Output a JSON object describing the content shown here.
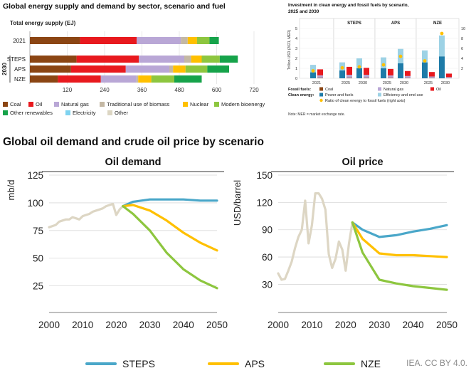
{
  "panel1": {
    "title": "Global energy supply and demand by sector, scenario and fuel",
    "subtitle": "Total energy supply (EJ)",
    "year_group_label": "2030",
    "rows": [
      "2021",
      "STEPS",
      "APS",
      "NZE"
    ],
    "xticks": [
      120,
      240,
      360,
      480,
      600,
      720
    ],
    "xlim": [
      0,
      720
    ],
    "fuels": [
      "Coal",
      "Oil",
      "Natural gas",
      "Traditional use of biomass",
      "Nuclear",
      "Modern bioenergy",
      "Other renewables",
      "Electricity",
      "Other"
    ],
    "colors": {
      "Coal": "#8B4513",
      "Oil": "#E8191E",
      "Natural gas": "#B9A7D6",
      "Traditional use of biomass": "#C4B8A4",
      "Nuclear": "#FFC000",
      "Modern bioenergy": "#8DC63F",
      "Other renewables": "#16A34A",
      "Electricity": "#7FD3F0",
      "Other": "#DCD6C3"
    },
    "values": [
      {
        "row": "2021",
        "Coal": 161,
        "Oil": 182,
        "Natural gas": 142,
        "Traditional use of biomass": 22,
        "Nuclear": 30,
        "Modern bioenergy": 40,
        "Other renewables": 30
      },
      {
        "row": "STEPS",
        "Coal": 150,
        "Oil": 200,
        "Natural gas": 146,
        "Traditional use of biomass": 22,
        "Nuclear": 34,
        "Modern bioenergy": 58,
        "Other renewables": 58
      },
      {
        "row": "APS",
        "Coal": 132,
        "Oil": 176,
        "Natural gas": 140,
        "Traditional use of biomass": 12,
        "Nuclear": 40,
        "Modern bioenergy": 70,
        "Other renewables": 70
      },
      {
        "row": "NZE",
        "Coal": 90,
        "Oil": 138,
        "Natural gas": 114,
        "Traditional use of biomass": 6,
        "Nuclear": 42,
        "Modern bioenergy": 74,
        "Other renewables": 88
      }
    ]
  },
  "panel2": {
    "title": "Investment in clean energy and fossil fuels by scenario, 2025 and 2030",
    "ylabel": "Trillion USD (2021, MER)",
    "yticks_left": [
      "0",
      "1",
      "2",
      "3",
      "4",
      "5"
    ],
    "yticks_right": [
      "2",
      "4",
      "6",
      "8",
      "10"
    ],
    "groups": [
      {
        "name": "",
        "cols": [
          "2021"
        ]
      },
      {
        "name": "STEPS",
        "cols": [
          "2025",
          "2030"
        ]
      },
      {
        "name": "APS",
        "cols": [
          "2025",
          "2030"
        ]
      },
      {
        "name": "NZE",
        "cols": [
          "2025",
          "2030"
        ]
      }
    ],
    "series": {
      "power_fuels": [
        0.6,
        0.8,
        1.0,
        1.0,
        1.5,
        1.6,
        2.2
      ],
      "efficiency": [
        0.75,
        0.8,
        1.0,
        1.1,
        1.45,
        1.2,
        2.1
      ],
      "fossil_coal": [
        0.05,
        0.05,
        0.05,
        0.04,
        0.03,
        0.03,
        0.02
      ],
      "fossil_gas": [
        0.25,
        0.3,
        0.3,
        0.25,
        0.2,
        0.15,
        0.1
      ],
      "fossil_oil": [
        0.6,
        0.8,
        0.7,
        0.65,
        0.5,
        0.45,
        0.35
      ],
      "ratio": [
        1.5,
        2.1,
        2.3,
        2.7,
        4.4,
        3.5,
        9.0
      ]
    },
    "legend": {
      "fossil_label": "Fossil fuels:",
      "clean_label": "Clean energy:",
      "coal": "Coal",
      "natural_gas": "Natural gas",
      "oil": "Oil",
      "power_fuels": "Power and fuels",
      "efficiency": "Efficiency and end-use",
      "ratio": "Ratio of clean energy to fossil fuels (right axis)"
    },
    "colors": {
      "power_fuels": "#1E7BA8",
      "efficiency": "#9DD2E5",
      "coal": "#8B4513",
      "natural_gas": "#B9A7D6",
      "oil": "#E8191E",
      "ratio": "#FFC000"
    },
    "note": "Note: MER = market exchange rate."
  },
  "panel3": {
    "title": "Global oil demand and crude oil price by scenario"
  },
  "chart_data": [
    {
      "type": "line",
      "title": "Oil demand",
      "ylabel": "mb/d",
      "xlim": [
        2000,
        2050
      ],
      "ylim": [
        10,
        125
      ],
      "xticks": [
        2000,
        2010,
        2020,
        2030,
        2040,
        2050
      ],
      "yticks": [
        25,
        50,
        75,
        100,
        125
      ],
      "grid": "horizontal",
      "series": [
        {
          "name": "",
          "color": "#DDD6C4",
          "x": [
            2000,
            2001,
            2002,
            2003,
            2004,
            2005,
            2006,
            2007,
            2008,
            2009,
            2010,
            2011,
            2012,
            2013,
            2014,
            2015,
            2016,
            2017,
            2018,
            2019,
            2020,
            2021,
            2022
          ],
          "y": [
            78,
            79,
            80,
            83,
            84,
            85,
            85,
            87,
            86,
            85,
            88,
            89,
            90,
            92,
            93,
            94,
            95,
            97,
            98,
            99,
            89,
            94,
            97
          ]
        },
        {
          "name": "STEPS",
          "color": "#4AA7C9",
          "x": [
            2022,
            2025,
            2030,
            2035,
            2040,
            2045,
            2050
          ],
          "y": [
            97,
            101,
            103,
            103,
            103,
            102,
            102
          ]
        },
        {
          "name": "APS",
          "color": "#FFC000",
          "x": [
            2022,
            2025,
            2030,
            2035,
            2040,
            2045,
            2050
          ],
          "y": [
            97,
            98,
            93,
            84,
            73,
            64,
            57
          ]
        },
        {
          "name": "NZE",
          "color": "#8DC63F",
          "x": [
            2022,
            2025,
            2030,
            2035,
            2040,
            2045,
            2050
          ],
          "y": [
            97,
            90,
            75,
            55,
            40,
            30,
            23
          ]
        }
      ]
    },
    {
      "type": "line",
      "title": "Oil price",
      "ylabel": "USD/barrel",
      "xlim": [
        2000,
        2050
      ],
      "ylim": [
        10,
        150
      ],
      "xticks": [
        2000,
        2010,
        2020,
        2030,
        2040,
        2050
      ],
      "yticks": [
        30,
        60,
        90,
        120,
        150
      ],
      "grid": "horizontal",
      "series": [
        {
          "name": "",
          "color": "#DDD6C4",
          "x": [
            2000,
            2001,
            2002,
            2003,
            2004,
            2005,
            2006,
            2007,
            2008,
            2009,
            2010,
            2011,
            2012,
            2013,
            2014,
            2015,
            2016,
            2017,
            2018,
            2019,
            2020,
            2021,
            2022
          ],
          "y": [
            42,
            35,
            36,
            45,
            55,
            70,
            82,
            90,
            122,
            75,
            95,
            130,
            130,
            124,
            112,
            63,
            48,
            58,
            77,
            68,
            45,
            75,
            98
          ]
        },
        {
          "name": "STEPS",
          "color": "#4AA7C9",
          "x": [
            2022,
            2025,
            2030,
            2035,
            2040,
            2045,
            2050
          ],
          "y": [
            98,
            90,
            82,
            84,
            88,
            91,
            95
          ]
        },
        {
          "name": "APS",
          "color": "#FFC000",
          "x": [
            2022,
            2025,
            2030,
            2035,
            2040,
            2045,
            2050
          ],
          "y": [
            98,
            80,
            64,
            62,
            62,
            61,
            60
          ]
        },
        {
          "name": "NZE",
          "color": "#8DC63F",
          "x": [
            2022,
            2025,
            2030,
            2035,
            2040,
            2045,
            2050
          ],
          "y": [
            98,
            65,
            35,
            31,
            28,
            26,
            24
          ]
        }
      ]
    }
  ],
  "footer": {
    "legend": [
      {
        "label": "STEPS",
        "color": "#4AA7C9"
      },
      {
        "label": "APS",
        "color": "#FFC000"
      },
      {
        "label": "NZE",
        "color": "#8DC63F"
      }
    ],
    "credit": "IEA. CC BY 4.0."
  }
}
